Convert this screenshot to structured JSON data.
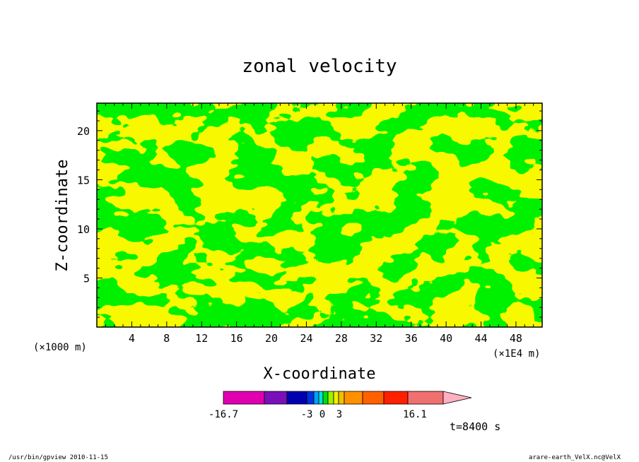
{
  "chart_data": {
    "type": "heatmap",
    "title": "zonal velocity",
    "xlabel": "X-coordinate",
    "ylabel": "Z-coordinate",
    "x_unit_left": "(×1000 m)",
    "x_unit_right": "(×1E4 m)",
    "x_ticks": [
      "4",
      "8",
      "12",
      "16",
      "20",
      "24",
      "28",
      "32",
      "36",
      "40",
      "44",
      "48"
    ],
    "y_ticks": [
      "5",
      "10",
      "15",
      "20"
    ],
    "xlim": [
      0,
      51
    ],
    "ylim": [
      0,
      22.8
    ],
    "colorbar": {
      "labels": [
        "-16.7",
        "-3",
        "0",
        "3",
        "16.1"
      ],
      "colors": [
        "#e000b0",
        "#7a10b8",
        "#0000b0",
        "#0030e0",
        "#00a0ff",
        "#00e0e0",
        "#00e000",
        "#a0f000",
        "#f0f000",
        "#f0c000",
        "#ff9000",
        "#ff6000",
        "#ff2000",
        "#f07070",
        "#ffb0c0"
      ]
    },
    "field_colors": {
      "positive": "#f0f000",
      "negative": "#00e000"
    },
    "time_label": "t=8400 s",
    "description": "alternating bands of weak positive (yellow) and weak negative (green) zonal velocity"
  },
  "footer": {
    "left": "/usr/bin/gpview  2010-11-15",
    "right": "arare-earth_VelX.nc@VelX"
  }
}
